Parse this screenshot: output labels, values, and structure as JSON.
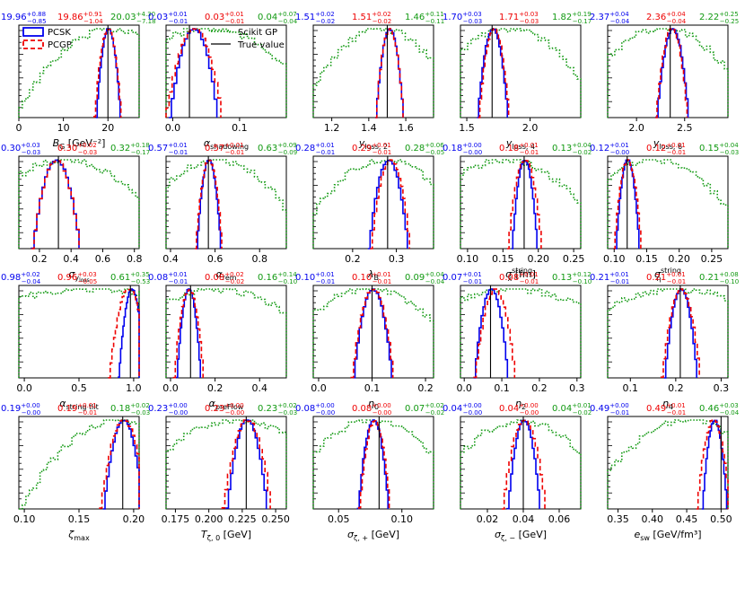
{
  "colors": {
    "pcsk": "#0000ee",
    "pcgp": "#ee0000",
    "gp": "#119911",
    "truth": "#000000"
  },
  "legend": {
    "pcsk": "PCSK",
    "pcgp": "PCGP",
    "gp": "Scikit GP",
    "truth": "True value"
  },
  "chart_data": [
    {
      "type": "line",
      "xlabel_main": "B",
      "xlabel_sub": "G",
      "xlabel_unit": " [GeV⁻²]",
      "xlim": [
        0,
        27
      ],
      "xticks": [
        "0",
        "10",
        "20"
      ],
      "xtick_vals": [
        0,
        10,
        20
      ],
      "truth": 20,
      "ann": [
        {
          "v": "19.96",
          "p": "+0.88",
          "m": "−0.85"
        },
        {
          "v": "19.86",
          "p": "+0.91",
          "m": "−1.04"
        },
        {
          "v": "20.03",
          "p": "+4.30",
          "m": "−7.18"
        }
      ],
      "pcsk": [
        20,
        0.9
      ],
      "pcgp": [
        19.9,
        1.0
      ],
      "gp": [
        21,
        7.5
      ]
    },
    {
      "type": "line",
      "xlabel_main": "α",
      "xlabel_sub": "shadowing",
      "xlabel_unit": "",
      "xlim": [
        -0.01,
        0.17
      ],
      "xticks": [
        "0.0",
        "0.1"
      ],
      "xtick_vals": [
        0,
        0.1
      ],
      "truth": 0.025,
      "ann": [
        {
          "v": "0.03",
          "p": "+0.01",
          "m": "−0.01"
        },
        {
          "v": "0.03",
          "p": "+0.01",
          "m": "−0.01"
        },
        {
          "v": "0.04",
          "p": "+0.07",
          "m": "−0.04"
        }
      ],
      "pcsk": [
        0.03,
        0.012
      ],
      "pcgp": [
        0.03,
        0.014
      ],
      "gp": [
        0.05,
        0.06
      ]
    },
    {
      "type": "line",
      "xlabel_main": "y",
      "xlabel_sub": "loss, 2",
      "xlabel_unit": "",
      "xlim": [
        1.1,
        1.75
      ],
      "xticks": [
        "1.2",
        "1.4",
        "1.6"
      ],
      "xtick_vals": [
        1.2,
        1.4,
        1.6
      ],
      "truth": 1.5,
      "ann": [
        {
          "v": "1.51",
          "p": "+0.02",
          "m": "−0.02"
        },
        {
          "v": "1.51",
          "p": "+0.02",
          "m": "−0.02"
        },
        {
          "v": "1.46",
          "p": "+0.11",
          "m": "−0.11"
        }
      ],
      "pcsk": [
        1.51,
        0.025
      ],
      "pcgp": [
        1.51,
        0.025
      ],
      "gp": [
        1.46,
        0.15
      ]
    },
    {
      "type": "line",
      "xlabel_main": "y",
      "xlabel_sub": "loss, 4",
      "xlabel_unit": "",
      "xlim": [
        1.45,
        2.4
      ],
      "xticks": [
        "1.5",
        "2.0"
      ],
      "xtick_vals": [
        1.5,
        2.0
      ],
      "truth": 1.7,
      "ann": [
        {
          "v": "1.70",
          "p": "+0.03",
          "m": "−0.03"
        },
        {
          "v": "1.71",
          "p": "+0.03",
          "m": "−0.03"
        },
        {
          "v": "1.82",
          "p": "+0.19",
          "m": "−0.17"
        }
      ],
      "pcsk": [
        1.7,
        0.04
      ],
      "pcgp": [
        1.71,
        0.04
      ],
      "gp": [
        1.82,
        0.25
      ]
    },
    {
      "type": "line",
      "xlabel_main": "y",
      "xlabel_sub": "loss, 6",
      "xlabel_unit": "",
      "xlim": [
        1.7,
        2.95
      ],
      "xticks": [
        "2.0",
        "2.5"
      ],
      "xtick_vals": [
        2.0,
        2.5
      ],
      "truth": 2.35,
      "ann": [
        {
          "v": "2.37",
          "p": "+0.04",
          "m": "−0.04"
        },
        {
          "v": "2.36",
          "p": "+0.04",
          "m": "−0.04"
        },
        {
          "v": "2.22",
          "p": "+0.25",
          "m": "−0.25"
        }
      ],
      "pcsk": [
        2.37,
        0.055
      ],
      "pcgp": [
        2.36,
        0.055
      ],
      "gp": [
        2.25,
        0.33
      ]
    },
    {
      "type": "line",
      "xlabel_main": "σ",
      "xlabel_sub": "y",
      "xlabel_subsub": "loss",
      "xlabel_unit": "",
      "xlim": [
        0.07,
        0.83
      ],
      "xticks": [
        "0.2",
        "0.4",
        "0.6",
        "0.8"
      ],
      "xtick_vals": [
        0.2,
        0.4,
        0.6,
        0.8
      ],
      "truth": 0.32,
      "ann": [
        {
          "v": "0.30",
          "p": "+0.03",
          "m": "−0.03"
        },
        {
          "v": "0.30",
          "p": "+0.02",
          "m": "−0.03"
        },
        {
          "v": "0.32",
          "p": "+0.18",
          "m": "−0.17"
        }
      ],
      "pcsk": [
        0.3,
        0.05
      ],
      "pcgp": [
        0.3,
        0.05
      ],
      "gp": [
        0.35,
        0.23
      ]
    },
    {
      "type": "line",
      "xlabel_main": "α",
      "xlabel_sub": "rem",
      "xlabel_unit": "",
      "xlim": [
        0.38,
        0.92
      ],
      "xticks": [
        "0.4",
        "0.6",
        "0.8"
      ],
      "xtick_vals": [
        0.4,
        0.6,
        0.8
      ],
      "truth": 0.57,
      "ann": [
        {
          "v": "0.57",
          "p": "+0.01",
          "m": "−0.01"
        },
        {
          "v": "0.57",
          "p": "+0.01",
          "m": "−0.01"
        },
        {
          "v": "0.63",
          "p": "+0.09",
          "m": "−0.09"
        }
      ],
      "pcsk": [
        0.57,
        0.018
      ],
      "pcgp": [
        0.57,
        0.02
      ],
      "gp": [
        0.6,
        0.14
      ]
    },
    {
      "type": "line",
      "xlabel_main": "λ",
      "xlabel_sub": "B",
      "xlabel_unit": "",
      "xlim": [
        0.11,
        0.385
      ],
      "xticks": [
        "0.2",
        "0.3"
      ],
      "xtick_vals": [
        0.2,
        0.3
      ],
      "truth": 0.28,
      "ann": [
        {
          "v": "0.28",
          "p": "+0.01",
          "m": "−0.01"
        },
        {
          "v": "0.29",
          "p": "+0.01",
          "m": "−0.01"
        },
        {
          "v": "0.28",
          "p": "+0.06",
          "m": "−0.05"
        }
      ],
      "pcsk": [
        0.28,
        0.015
      ],
      "pcgp": [
        0.285,
        0.015
      ],
      "gp": [
        0.27,
        0.07
      ]
    },
    {
      "type": "line",
      "xlabel_main": "σ",
      "xlabel_sub": "x",
      "xlabel_sup": "string",
      "xlabel_unit": " [fm]",
      "xlim": [
        0.09,
        0.26
      ],
      "xticks": [
        "0.10",
        "0.15",
        "0.20",
        "0.25"
      ],
      "xtick_vals": [
        0.1,
        0.15,
        0.2,
        0.25
      ],
      "truth": 0.18,
      "ann": [
        {
          "v": "0.18",
          "p": "+0.00",
          "m": "−0.00"
        },
        {
          "v": "0.18",
          "p": "+0.01",
          "m": "−0.01"
        },
        {
          "v": "0.13",
          "p": "+0.04",
          "m": "−0.02"
        }
      ],
      "pcsk": [
        0.18,
        0.006
      ],
      "pcgp": [
        0.18,
        0.008
      ],
      "gp": [
        0.15,
        0.05
      ]
    },
    {
      "type": "line",
      "xlabel_main": "σ",
      "xlabel_sub": "η",
      "xlabel_sup": "string",
      "xlabel_unit": "",
      "xlim": [
        0.09,
        0.275
      ],
      "xticks": [
        "0.10",
        "0.15",
        "0.20",
        "0.25"
      ],
      "xtick_vals": [
        0.1,
        0.15,
        0.2,
        0.25
      ],
      "truth": 0.12,
      "ann": [
        {
          "v": "0.12",
          "p": "+0.01",
          "m": "−0.00"
        },
        {
          "v": "0.12",
          "p": "+0.01",
          "m": "−0.01"
        },
        {
          "v": "0.15",
          "p": "+0.04",
          "m": "−0.03"
        }
      ],
      "pcsk": [
        0.12,
        0.006
      ],
      "pcgp": [
        0.12,
        0.007
      ],
      "gp": [
        0.16,
        0.05
      ]
    },
    {
      "type": "line",
      "xlabel_main": "α",
      "xlabel_sub": "string tilt",
      "xlabel_unit": "",
      "xlim": [
        -0.05,
        1.05
      ],
      "xticks": [
        "0.0",
        "0.5",
        "1.0"
      ],
      "xtick_vals": [
        0,
        0.5,
        1.0
      ],
      "truth": 0.97,
      "ann": [
        {
          "v": "0.98",
          "p": "+0.02",
          "m": "−0.04"
        },
        {
          "v": "0.96",
          "p": "+0.03",
          "m": "−0.05"
        },
        {
          "v": "0.61",
          "p": "+0.35",
          "m": "−0.53"
        }
      ],
      "pcsk": [
        0.98,
        0.04
      ],
      "pcgp": [
        0.95,
        0.06
      ],
      "gp": [
        0.6,
        0.7
      ]
    },
    {
      "type": "line",
      "xlabel_main": "α",
      "xlabel_sub": "preFlow",
      "xlabel_unit": "",
      "xlim": [
        -0.02,
        0.52
      ],
      "xticks": [
        "0.0",
        "0.2",
        "0.4"
      ],
      "xtick_vals": [
        0,
        0.2,
        0.4
      ],
      "truth": 0.09,
      "ann": [
        {
          "v": "0.08",
          "p": "+0.01",
          "m": "−0.01"
        },
        {
          "v": "0.08",
          "p": "+0.02",
          "m": "−0.02"
        },
        {
          "v": "0.16",
          "p": "+0.14",
          "m": "−0.10"
        }
      ],
      "pcsk": [
        0.08,
        0.018
      ],
      "pcgp": [
        0.08,
        0.022
      ],
      "gp": [
        0.2,
        0.2
      ]
    },
    {
      "type": "line",
      "xlabel_main": "η",
      "xlabel_sub": "0",
      "xlabel_unit": "",
      "xlim": [
        -0.01,
        0.215
      ],
      "xticks": [
        "0.0",
        "0.1",
        "0.2"
      ],
      "xtick_vals": [
        0,
        0.1,
        0.2
      ],
      "truth": 0.1,
      "ann": [
        {
          "v": "0.10",
          "p": "+0.01",
          "m": "−0.01"
        },
        {
          "v": "0.10",
          "p": "+0.01",
          "m": "−0.01"
        },
        {
          "v": "0.09",
          "p": "+0.04",
          "m": "−0.04"
        }
      ],
      "pcsk": [
        0.1,
        0.012
      ],
      "pcgp": [
        0.1,
        0.013
      ],
      "gp": [
        0.09,
        0.065
      ]
    },
    {
      "type": "line",
      "xlabel_main": "η",
      "xlabel_sub": "2",
      "xlabel_unit": "",
      "xlim": [
        -0.01,
        0.31
      ],
      "xticks": [
        "0.0",
        "0.1",
        "0.2",
        "0.3"
      ],
      "xtick_vals": [
        0,
        0.1,
        0.2,
        0.3
      ],
      "truth": 0.07,
      "ann": [
        {
          "v": "0.07",
          "p": "+0.01",
          "m": "−0.01"
        },
        {
          "v": "0.08",
          "p": "+0.01",
          "m": "−0.01"
        },
        {
          "v": "0.13",
          "p": "+0.12",
          "m": "−0.10"
        }
      ],
      "pcsk": [
        0.07,
        0.015
      ],
      "pcgp": [
        0.08,
        0.018
      ],
      "gp": [
        0.13,
        0.13
      ]
    },
    {
      "type": "line",
      "xlabel_main": "η",
      "xlabel_sub": "4",
      "xlabel_unit": "",
      "xlim": [
        0.05,
        0.315
      ],
      "xticks": [
        "0.1",
        "0.2",
        "0.3"
      ],
      "xtick_vals": [
        0.1,
        0.2,
        0.3
      ],
      "truth": 0.21,
      "ann": [
        {
          "v": "0.21",
          "p": "+0.01",
          "m": "−0.01"
        },
        {
          "v": "0.21",
          "p": "+0.01",
          "m": "−0.01"
        },
        {
          "v": "0.21",
          "p": "+0.08",
          "m": "−0.10"
        }
      ],
      "pcsk": [
        0.21,
        0.012
      ],
      "pcgp": [
        0.21,
        0.014
      ],
      "gp": [
        0.2,
        0.11
      ]
    },
    {
      "type": "line",
      "xlabel_main": "ζ",
      "xlabel_sub": "max",
      "xlabel_unit": "",
      "xlim": [
        0.095,
        0.205
      ],
      "xticks": [
        "0.10",
        "0.15",
        "0.20"
      ],
      "xtick_vals": [
        0.1,
        0.15,
        0.2
      ],
      "truth": 0.19,
      "ann": [
        {
          "v": "0.19",
          "p": "+0.00",
          "m": "−0.00"
        },
        {
          "v": "0.19",
          "p": "+0.01",
          "m": "−0.01"
        },
        {
          "v": "0.18",
          "p": "+0.02",
          "m": "−0.03"
        }
      ],
      "pcsk": [
        0.19,
        0.006
      ],
      "pcgp": [
        0.19,
        0.007
      ],
      "gp": [
        0.185,
        0.03
      ]
    },
    {
      "type": "line",
      "xlabel_main": "T",
      "xlabel_sub": "ζ, 0",
      "xlabel_unit": " [GeV]",
      "xlim": [
        0.168,
        0.258
      ],
      "xticks": [
        "0.175",
        "0.200",
        "0.225",
        "0.250"
      ],
      "xtick_vals": [
        0.175,
        0.2,
        0.225,
        0.25
      ],
      "truth": 0.228,
      "ann": [
        {
          "v": "0.23",
          "p": "+0.00",
          "m": "−0.00"
        },
        {
          "v": "0.23",
          "p": "+0.00",
          "m": "−0.00"
        },
        {
          "v": "0.23",
          "p": "+0.02",
          "m": "−0.03"
        }
      ],
      "pcsk": [
        0.228,
        0.005
      ],
      "pcgp": [
        0.228,
        0.006
      ],
      "gp": [
        0.22,
        0.03
      ]
    },
    {
      "type": "line",
      "xlabel_main": "σ",
      "xlabel_sub": "ζ, +",
      "xlabel_unit": " [GeV]",
      "xlim": [
        0.03,
        0.125
      ],
      "xticks": [
        "0.05",
        "0.10"
      ],
      "xtick_vals": [
        0.05,
        0.1
      ],
      "truth": 0.082,
      "ann": [
        {
          "v": "0.08",
          "p": "+0.00",
          "m": "−0.00"
        },
        {
          "v": "0.08",
          "p": "+0.00",
          "m": "−0.00"
        },
        {
          "v": "0.07",
          "p": "+0.02",
          "m": "−0.02"
        }
      ],
      "pcsk": [
        0.077,
        0.004
      ],
      "pcgp": [
        0.078,
        0.004
      ],
      "gp": [
        0.075,
        0.025
      ]
    },
    {
      "type": "line",
      "xlabel_main": "σ",
      "xlabel_sub": "ζ, −",
      "xlabel_unit": " [GeV]",
      "xlim": [
        0.005,
        0.072
      ],
      "xticks": [
        "0.02",
        "0.04",
        "0.06"
      ],
      "xtick_vals": [
        0.02,
        0.04,
        0.06
      ],
      "truth": 0.04,
      "ann": [
        {
          "v": "0.04",
          "p": "+0.00",
          "m": "−0.00"
        },
        {
          "v": "0.04",
          "p": "+0.00",
          "m": "−0.00"
        },
        {
          "v": "0.04",
          "p": "+0.01",
          "m": "−0.02"
        }
      ],
      "pcsk": [
        0.04,
        0.003
      ],
      "pcgp": [
        0.04,
        0.004
      ],
      "gp": [
        0.038,
        0.018
      ]
    },
    {
      "type": "line",
      "xlabel_main": "e",
      "xlabel_sub": "sw",
      "xlabel_unit": " [GeV/fm³]",
      "xlim": [
        0.335,
        0.51
      ],
      "xticks": [
        "0.35",
        "0.40",
        "0.45",
        "0.50"
      ],
      "xtick_vals": [
        0.35,
        0.4,
        0.45,
        0.5
      ],
      "truth": 0.5,
      "ann": [
        {
          "v": "0.49",
          "p": "+0.00",
          "m": "−0.01"
        },
        {
          "v": "0.49",
          "p": "+0.01",
          "m": "−0.01"
        },
        {
          "v": "0.46",
          "p": "+0.03",
          "m": "−0.04"
        }
      ],
      "pcsk": [
        0.49,
        0.006
      ],
      "pcgp": [
        0.488,
        0.008
      ],
      "gp": [
        0.45,
        0.05
      ]
    }
  ]
}
